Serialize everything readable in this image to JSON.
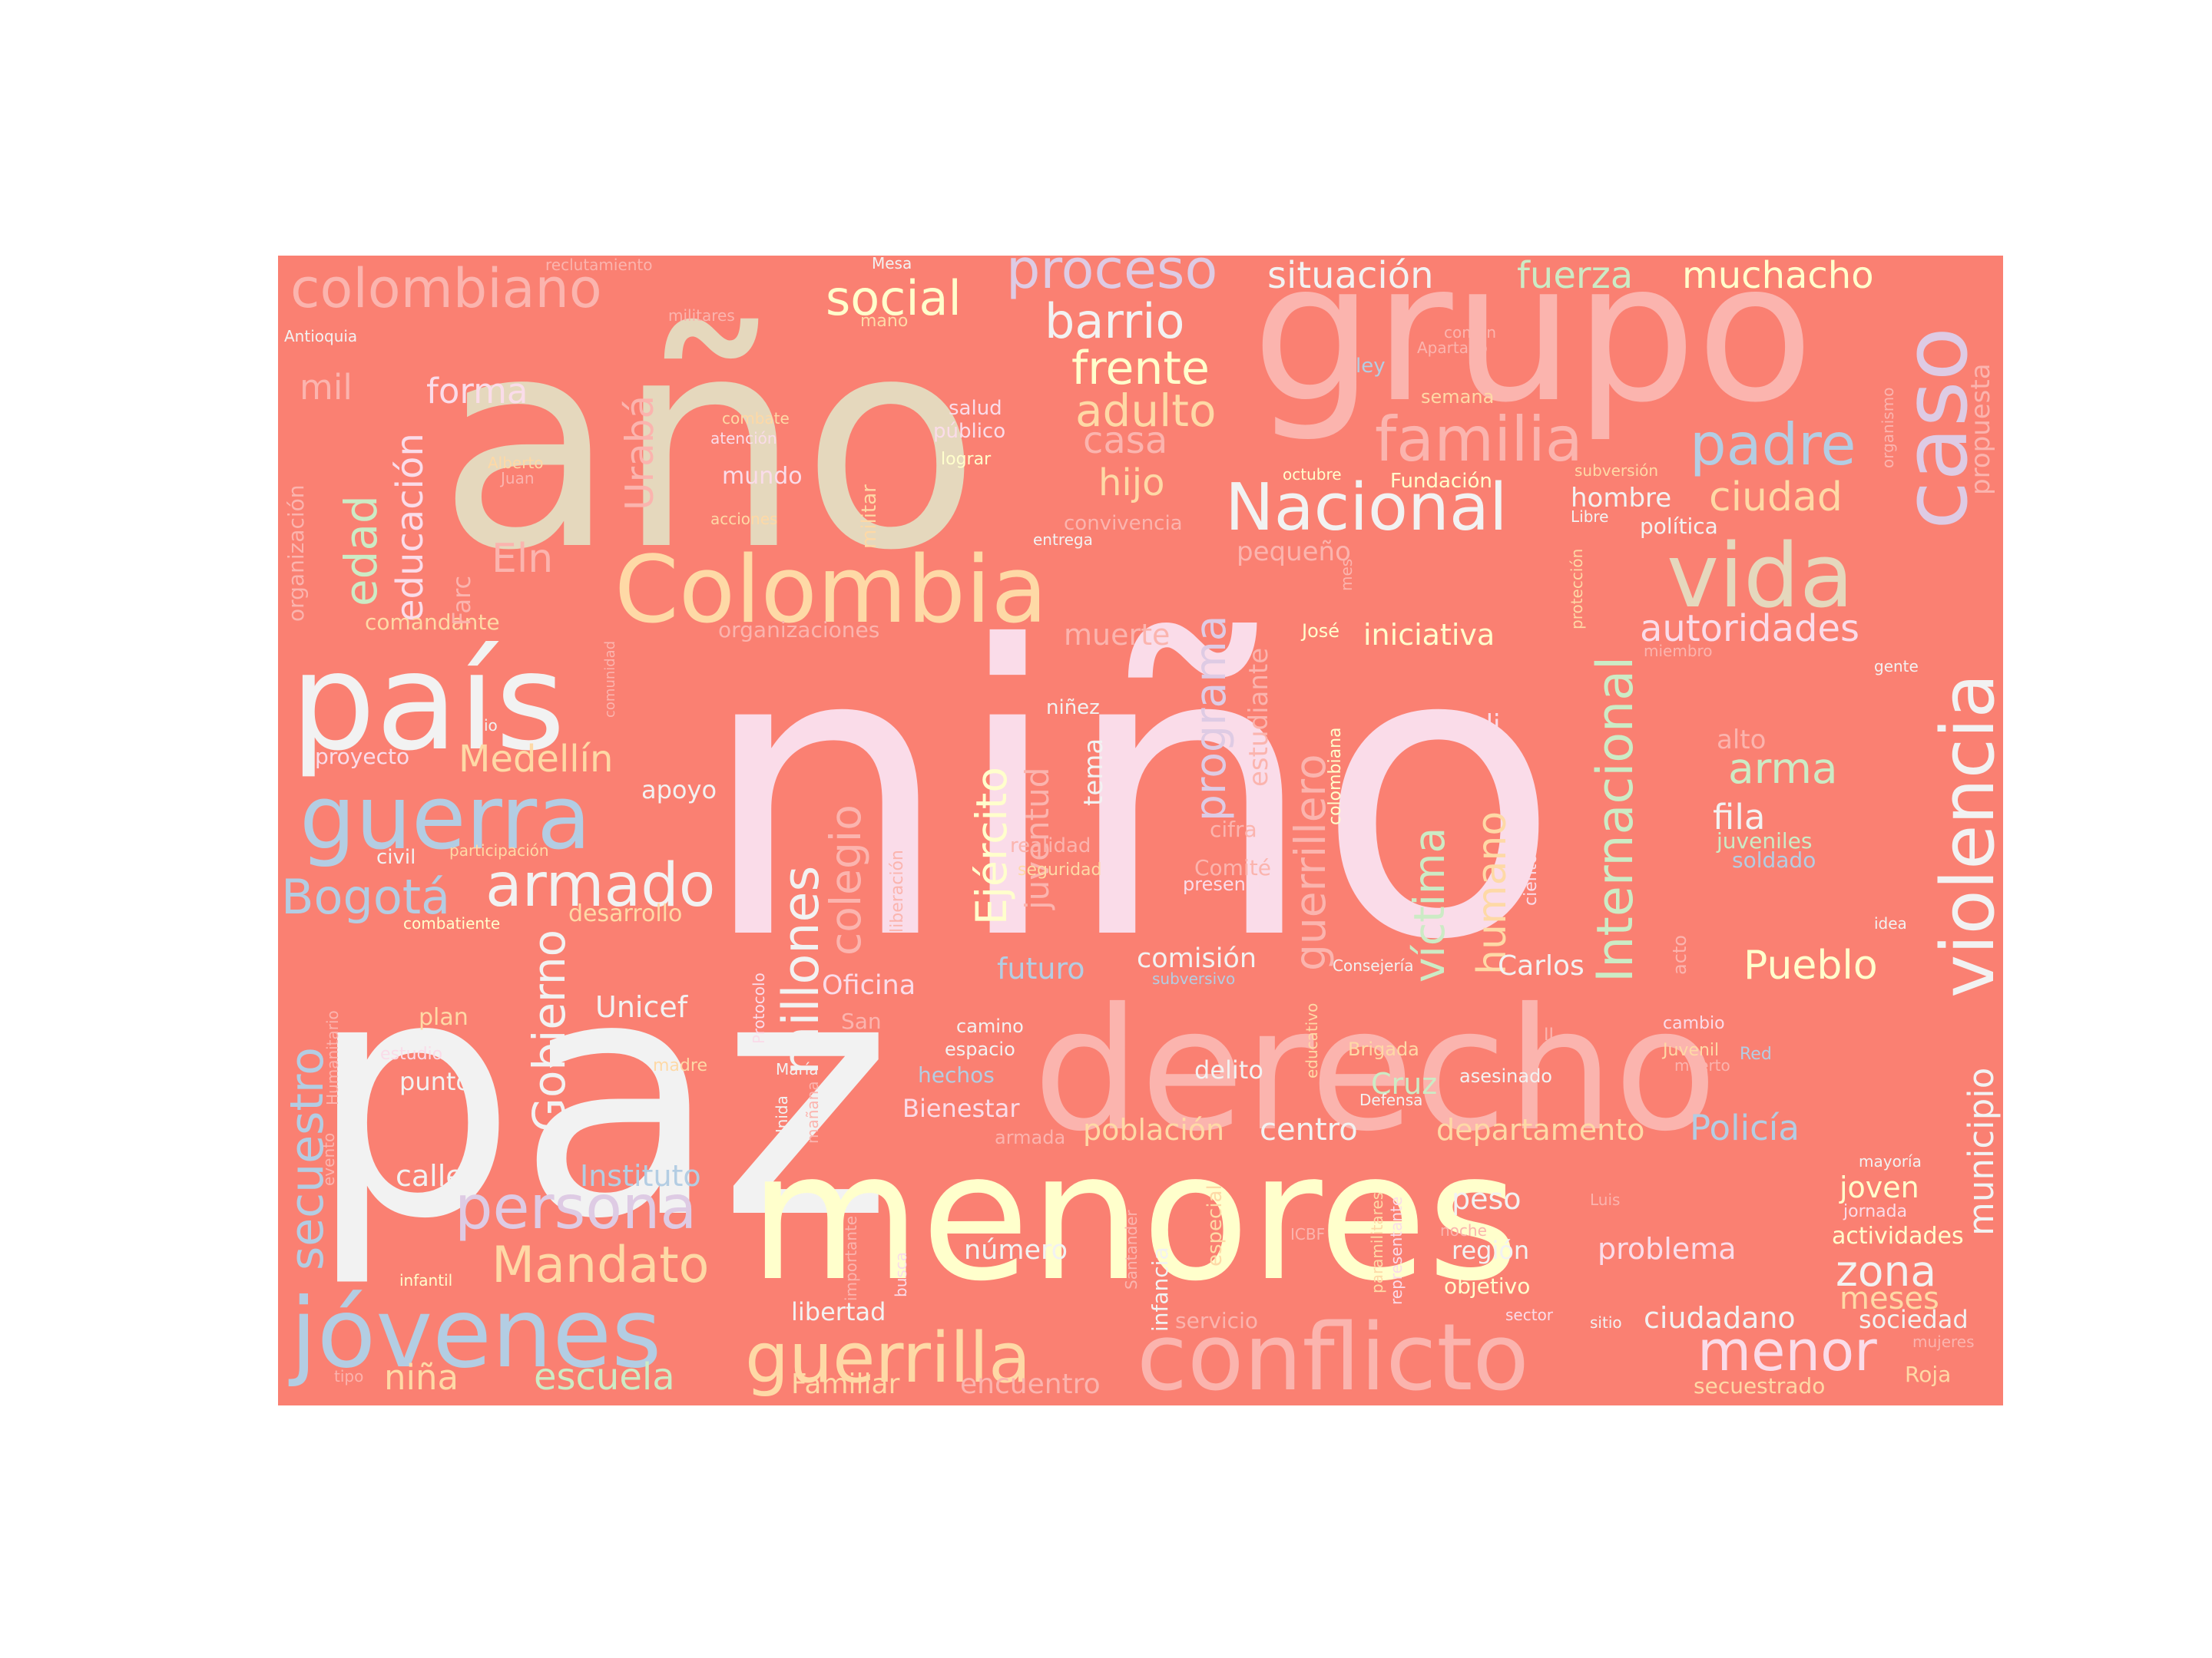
{
  "colors": {
    "background": "#fa8072",
    "page": "#ffffff",
    "pink": "#fadce9",
    "white": "#f2f2f2",
    "cream": "#ffffcc",
    "salmon_light": "#fbb4ae",
    "peach": "#fed9a6",
    "beige": "#e5d8bd",
    "blue": "#b3cde3",
    "lavender": "#decbe4",
    "green": "#ccebc5",
    "tan": "#e5d8bd"
  },
  "words": {
    "w001": "niño",
    "w002": "paz",
    "w003": "año",
    "w004": "grupo",
    "w005": "menores",
    "w006": "derecho",
    "w007": "país",
    "w008": "conflicto",
    "w009": "Colombia",
    "w010": "jóvenes",
    "w011": "violencia",
    "w012": "guerra",
    "w013": "vida",
    "w014": "caso",
    "w015": "guerrilla",
    "w016": "Nacional",
    "w017": "familia",
    "w018": "proceso",
    "w019": "colombiano",
    "w020": "persona",
    "w021": "armado",
    "w022": "social",
    "w023": "padre",
    "w024": "barrio",
    "w025": "Mandato",
    "w026": "Bogotá",
    "w027": "millones",
    "w028": "Internacional",
    "w029": "menor",
    "w030": "Gobierno",
    "w031": "secuestro",
    "w032": "frente",
    "w033": "adulto",
    "w034": "situación",
    "w035": "fuerza",
    "w036": "muchacho",
    "w037": "autoridades",
    "w038": "Ejército",
    "w039": "programa",
    "w040": "ciudad",
    "w041": "víctima",
    "w042": "colegio",
    "w043": "guerrillero",
    "w044": "humano",
    "w045": "zona",
    "w046": "Medellín",
    "w047": "educación",
    "w048": "edad",
    "w049": "Urabá",
    "w050": "municipio",
    "w051": "escuela",
    "w052": "arma",
    "w053": "Pueblo",
    "w054": "casa",
    "w055": "hijo",
    "w056": "Eln",
    "w057": "forma",
    "w058": "mil",
    "w059": "niña",
    "w060": "fila",
    "w061": "Policía",
    "w062": "juventud",
    "w063": "iniciativa",
    "w064": "departamento",
    "w065": "centro",
    "w066": "población",
    "w067": "problema",
    "w068": "meses",
    "w069": "joven",
    "w070": "Unicef",
    "w071": "comisión",
    "w072": "Oficina",
    "w073": "Instituto",
    "w074": "estudiante",
    "w075": "propuesta",
    "w076": "muerte",
    "w077": "futuro",
    "w078": "Cruz",
    "w079": "Carlos",
    "w080": "ciudadano",
    "w081": "peso",
    "w082": "número",
    "w083": "calle",
    "w084": "Familiar",
    "w085": "encuentro",
    "w086": "hombre",
    "w087": "libertad",
    "w088": "Bienestar",
    "w089": "tema",
    "w090": "delito",
    "w091": "sociedad",
    "w092": "actividades",
    "w093": "región",
    "w094": "Cali",
    "w095": "pequeño",
    "w096": "alto",
    "w097": "punto",
    "w098": "plan",
    "w099": "apoyo",
    "w100": "mundo",
    "w101": "comandante",
    "w102": "proyecto",
    "w103": "organizaciones",
    "w104": "organización",
    "w105": "Farc",
    "w106": "secuestrado",
    "w107": "Roja",
    "w108": "objetivo",
    "w109": "servicio",
    "w110": "civil",
    "w111": "niñez",
    "w112": "realidad",
    "w113": "cifra",
    "w114": "Comité",
    "w115": "presencia",
    "w116": "hechos",
    "w117": "espacio",
    "w118": "camino",
    "w119": "asesinado",
    "w120": "Brigada",
    "w121": "juveniles",
    "w122": "soldado",
    "w123": "infancia",
    "w124": "especial",
    "w125": "política",
    "w126": "Fundación",
    "w127": "convivencia",
    "w128": "militar",
    "w129": "salud",
    "w130": "público",
    "w131": "lograr",
    "w132": "reclutamiento",
    "w133": "militares",
    "w134": "Antioquia",
    "w135": "Mesa",
    "w136": "mano",
    "w137": "ley",
    "w138": "semana",
    "w139": "común",
    "w140": "Apartado",
    "w141": "organismo",
    "w142": "subversión",
    "w143": "Libre",
    "w144": "protección",
    "w145": "miembro",
    "w146": "gente",
    "w147": "octubre",
    "w148": "entrega",
    "w149": "mes",
    "w150": "José",
    "w151": "colombiana",
    "w152": "comunidad",
    "w153": "io",
    "w154": "Alberto",
    "w155": "Juan",
    "w156": "combate",
    "w157": "atención",
    "w158": "acciones",
    "w159": "participación",
    "w160": "seguridad",
    "w161": "liberación",
    "w162": "desarrollo",
    "w163": "combatiente",
    "w164": "San",
    "w165": "estudio",
    "w166": "madre",
    "w167": "Humanitario",
    "w168": "Protocolo",
    "w169": "María",
    "w170": "Unida",
    "w171": "mañana",
    "w172": "armada",
    "w173": "evento",
    "w174": "infantil",
    "w175": "tipo",
    "w176": "importante",
    "w177": "busca",
    "w178": "Santander",
    "w179": "paramilitares",
    "w180": "representante",
    "w181": "noche",
    "w182": "sector",
    "w183": "sitio",
    "w184": "mujeres",
    "w185": "jornada",
    "w186": "mayoría",
    "w187": "Luis",
    "w188": "ICBF",
    "w189": "Defensa",
    "w190": "Consejería",
    "w191": "subversivo",
    "w192": "educativo",
    "w193": "ciento",
    "w194": "acto",
    "w195": "idea",
    "w196": "II",
    "w197": "Juvenil",
    "w198": "muerto",
    "w199": "cambio",
    "w200": "Red"
  }
}
